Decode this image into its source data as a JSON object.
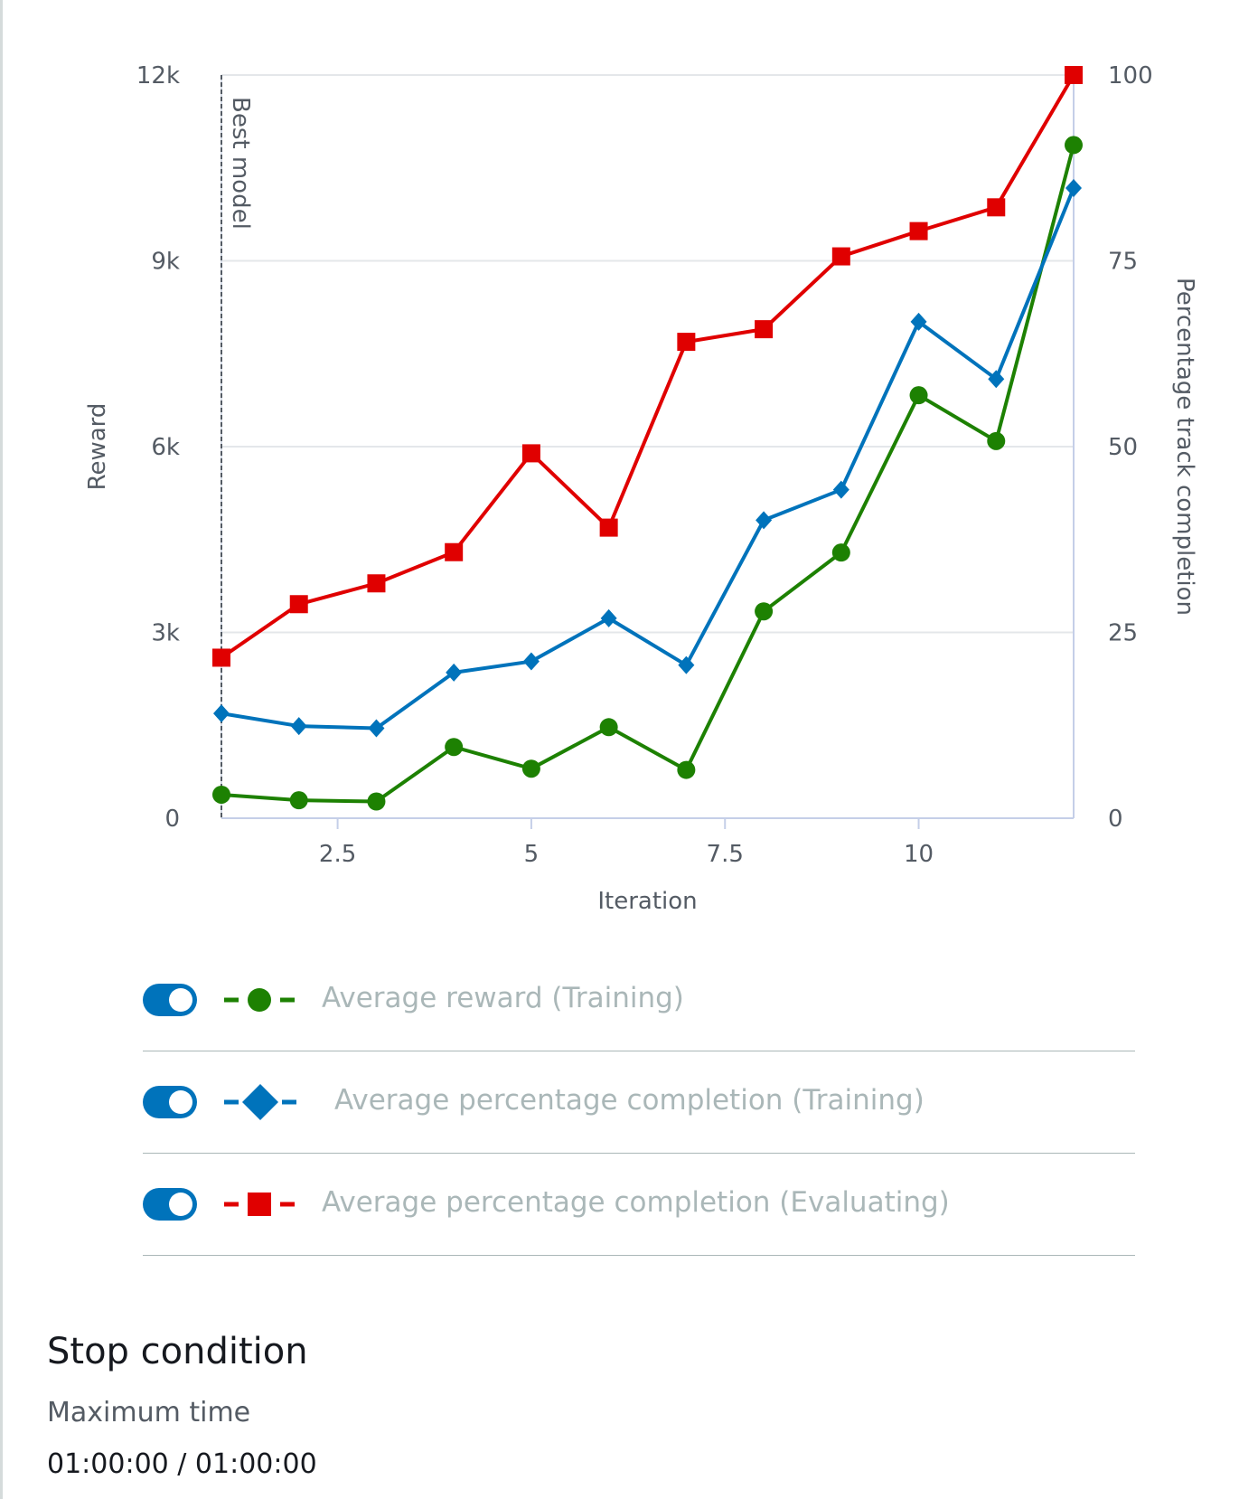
{
  "chart_data": {
    "type": "line",
    "xlabel": "Iteration",
    "ylabel_left": "Reward",
    "ylabel_right": "Percentage track completion",
    "xlim": [
      1,
      12
    ],
    "ylim_left": [
      0,
      12000
    ],
    "ylim_right": [
      0,
      100
    ],
    "x_ticks": [
      2.5,
      5,
      7.5,
      10
    ],
    "x_tick_labels": [
      "2.5",
      "5",
      "7.5",
      "10"
    ],
    "y_left_ticks": [
      0,
      3000,
      6000,
      9000,
      12000
    ],
    "y_left_tick_labels": [
      "0",
      "3k",
      "6k",
      "9k",
      "12k"
    ],
    "y_right_ticks": [
      0,
      25,
      50,
      75,
      100
    ],
    "y_right_tick_labels": [
      "0",
      "25",
      "50",
      "75",
      "100"
    ],
    "grid": true,
    "annotation": {
      "label": "Best model",
      "x": 1
    },
    "x": [
      1,
      2,
      3,
      4,
      5,
      6,
      7,
      8,
      9,
      10,
      11,
      12
    ],
    "series": [
      {
        "name": "Average reward (Training)",
        "axis": "left",
        "color": "#1d8102",
        "marker": "circle",
        "values": [
          380,
          290,
          270,
          1150,
          800,
          1470,
          780,
          3340,
          4290,
          6830,
          6090,
          10870
        ]
      },
      {
        "name": "Average percentage completion (Training)",
        "axis": "right",
        "color": "#0073bb",
        "marker": "diamond",
        "values": [
          14.1,
          12.4,
          12.1,
          19.6,
          21.1,
          26.9,
          20.6,
          40.1,
          44.2,
          66.8,
          59.1,
          84.8
        ]
      },
      {
        "name": "Average percentage completion (Evaluating)",
        "axis": "right",
        "color": "#e00000",
        "marker": "square",
        "values": [
          21.6,
          28.8,
          31.6,
          35.8,
          49.1,
          39.1,
          64.1,
          65.8,
          75.6,
          79.0,
          82.2,
          100
        ]
      }
    ]
  },
  "stop": {
    "title": "Stop condition",
    "label": "Maximum time",
    "value": "01:00:00 / 01:00:00"
  }
}
